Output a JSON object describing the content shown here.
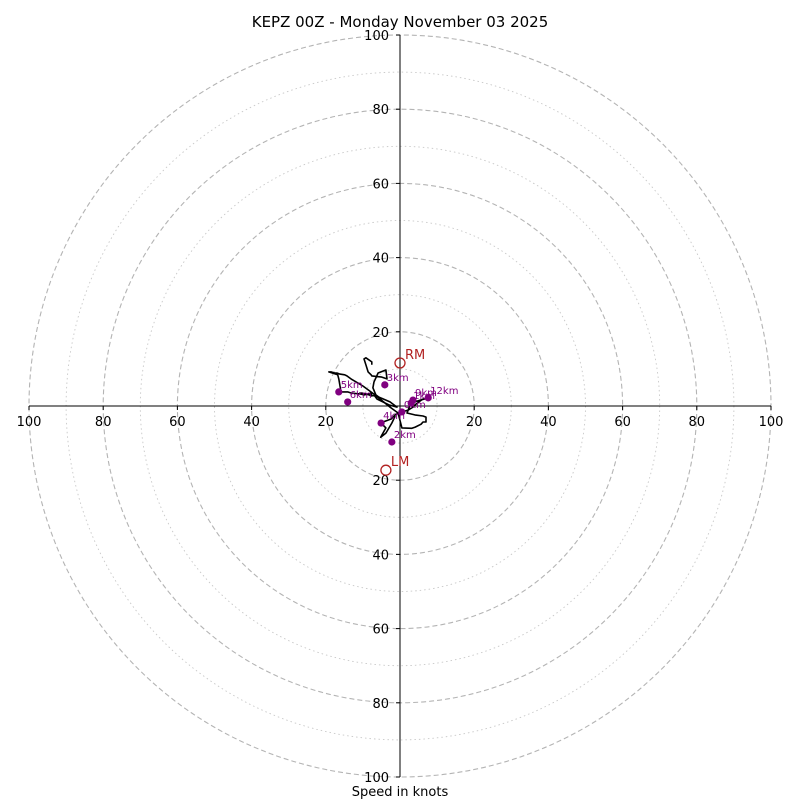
{
  "chart_data": {
    "type": "line",
    "title": "KEPZ 00Z - Monday November 03 2025",
    "xlabel": "Speed in knots",
    "range": [
      -100,
      100
    ],
    "rings_major": [
      20,
      40,
      60,
      80,
      100
    ],
    "rings_minor": [
      10,
      30,
      50,
      70,
      90
    ],
    "x_ticks": [
      {
        "v": -100,
        "label": "100"
      },
      {
        "v": -80,
        "label": "80"
      },
      {
        "v": -60,
        "label": "60"
      },
      {
        "v": -40,
        "label": "40"
      },
      {
        "v": -20,
        "label": "20"
      },
      {
        "v": 20,
        "label": "20"
      },
      {
        "v": 40,
        "label": "40"
      },
      {
        "v": 60,
        "label": "60"
      },
      {
        "v": 80,
        "label": "80"
      },
      {
        "v": 100,
        "label": "100"
      }
    ],
    "y_ticks": [
      {
        "v": 100,
        "label": "100"
      },
      {
        "v": 80,
        "label": "80"
      },
      {
        "v": 60,
        "label": "60"
      },
      {
        "v": 40,
        "label": "40"
      },
      {
        "v": 20,
        "label": "20"
      },
      {
        "v": -20,
        "label": "20"
      },
      {
        "v": -40,
        "label": "40"
      },
      {
        "v": -60,
        "label": "60"
      },
      {
        "v": -80,
        "label": "80"
      },
      {
        "v": -100,
        "label": "100"
      }
    ],
    "hodograph": {
      "name": "hodograph",
      "color": "#000000",
      "points": [
        [
          -1.3,
          -2.7
        ],
        [
          -2.2,
          -4.6
        ],
        [
          -3.8,
          -7.3
        ],
        [
          -5.2,
          -8.4
        ],
        [
          -4.3,
          -6.8
        ],
        [
          -3.8,
          -5.9
        ],
        [
          -4.3,
          -5.4
        ],
        [
          -5.4,
          -4.6
        ],
        [
          -2.4,
          -3.5
        ],
        [
          -1.1,
          -2.2
        ],
        [
          0.5,
          -1.6
        ],
        [
          2.2,
          -1.1
        ],
        [
          3.5,
          -0.3
        ],
        [
          4.3,
          0.5
        ],
        [
          5.1,
          1.1
        ],
        [
          6.2,
          1.9
        ],
        [
          7.6,
          2.2
        ],
        [
          4.9,
          1.4
        ],
        [
          3.8,
          1.1
        ],
        [
          3.0,
          0.8
        ],
        [
          2.4,
          -0.5
        ],
        [
          2.2,
          -1.1
        ],
        [
          1.9,
          -1.9
        ],
        [
          4.0,
          -2.4
        ],
        [
          6.2,
          -2.7
        ],
        [
          7.0,
          -3.0
        ],
        [
          7.0,
          -4.3
        ],
        [
          6.2,
          -4.3
        ],
        [
          5.7,
          -4.9
        ],
        [
          4.1,
          -5.7
        ],
        [
          3.2,
          -6.0
        ],
        [
          0.5,
          -5.9
        ],
        [
          -0.5,
          -1.9
        ],
        [
          -2.7,
          -0.3
        ],
        [
          -7.0,
          3.2
        ],
        [
          -10.0,
          5.4
        ],
        [
          -13.2,
          7.3
        ],
        [
          -14.3,
          8.1
        ],
        [
          -14.9,
          8.4
        ],
        [
          -16.2,
          8.6
        ],
        [
          -17.0,
          8.9
        ],
        [
          -17.6,
          8.9
        ],
        [
          -18.6,
          9.2
        ],
        [
          -18.9,
          9.2
        ],
        [
          -19.2,
          9.2
        ],
        [
          -16.8,
          8.4
        ],
        [
          -16.5,
          7.3
        ],
        [
          -15.9,
          3.8
        ],
        [
          -14.1,
          3.8
        ],
        [
          -13.2,
          3.5
        ],
        [
          -10.5,
          3.2
        ],
        [
          -9.7,
          3.0
        ],
        [
          -8.6,
          3.2
        ],
        [
          -7.8,
          3.5
        ],
        [
          -7.6,
          2.7
        ],
        [
          -8.9,
          3.2
        ],
        [
          -10.8,
          3.5
        ],
        [
          -10.3,
          3.5
        ],
        [
          -6.8,
          2.7
        ],
        [
          -6.2,
          1.9
        ],
        [
          -3.0,
          0.3
        ],
        [
          -0.8,
          -0.3
        ],
        [
          -2.7,
          1.1
        ],
        [
          -5.7,
          2.4
        ],
        [
          -6.5,
          3.0
        ],
        [
          -7.3,
          4.9
        ],
        [
          -7.0,
          6.5
        ],
        [
          -5.9,
          8.9
        ],
        [
          -3.8,
          9.7
        ],
        [
          -3.5,
          7.3
        ],
        [
          -4.9,
          7.8
        ],
        [
          -7.6,
          8.1
        ],
        [
          -7.8,
          8.4
        ],
        [
          -8.6,
          9.2
        ],
        [
          -9.2,
          11.1
        ],
        [
          -9.7,
          12.7
        ],
        [
          -9.2,
          13.0
        ],
        [
          -7.6,
          11.9
        ],
        [
          -7.6,
          11.6
        ],
        [
          -7.6,
          11.3
        ],
        [
          -7.6,
          11.1
        ]
      ]
    },
    "height_markers": {
      "color": "#800080",
      "points": [
        {
          "label": "0km",
          "u": 0.5,
          "v": -1.6
        },
        {
          "label": "1km",
          "u": 3.0,
          "v": 0.8
        },
        {
          "label": "2km",
          "u": -2.2,
          "v": -9.7
        },
        {
          "label": "3km",
          "u": -4.1,
          "v": 5.7
        },
        {
          "label": "4km",
          "u": -5.1,
          "v": -4.6
        },
        {
          "label": "5km",
          "u": -16.5,
          "v": 3.8
        },
        {
          "label": "6km",
          "u": -14.1,
          "v": 1.1
        },
        {
          "label": "9km",
          "u": 3.5,
          "v": 1.6
        },
        {
          "label": "12km",
          "u": 7.6,
          "v": 2.2
        }
      ]
    },
    "storm_motion": {
      "color": "#b22222",
      "points": [
        {
          "label": "RM",
          "u": 0.0,
          "v": 11.6
        },
        {
          "label": "LM",
          "u": -3.8,
          "v": -17.3
        }
      ]
    }
  }
}
